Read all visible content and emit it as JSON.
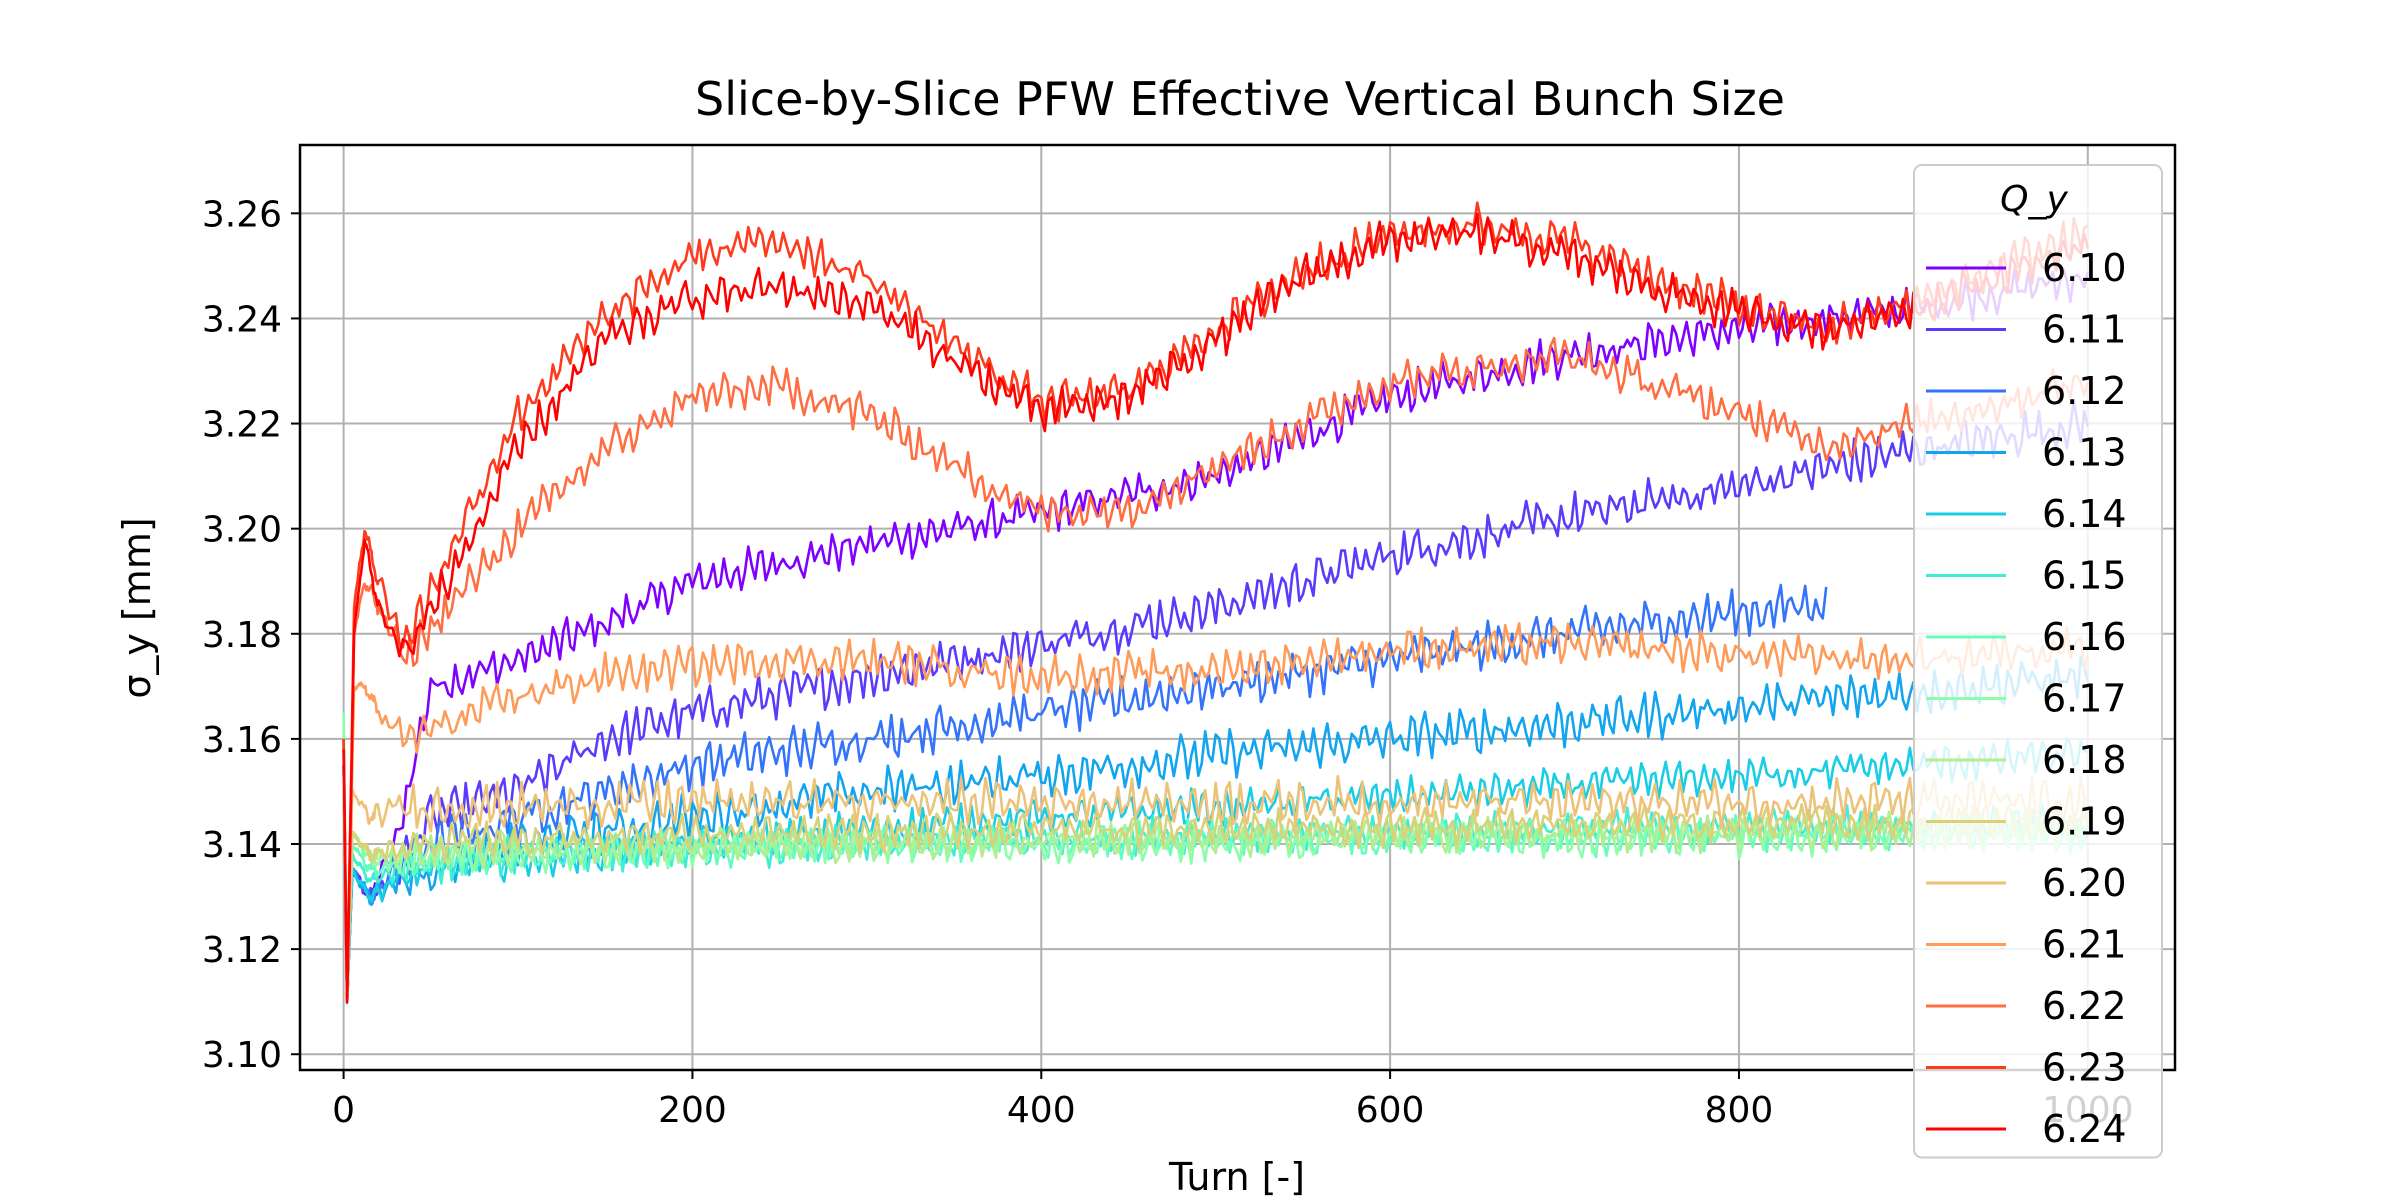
{
  "chart_data": {
    "type": "line",
    "title": "Slice-by-Slice PFW Effective Vertical Bunch Size",
    "xlabel": "Turn [-]",
    "ylabel": "σ_y [mm]",
    "xlim": [
      -25,
      1050
    ],
    "ylim": [
      3.097,
      3.273
    ],
    "xticks": [
      0,
      200,
      400,
      600,
      800,
      1000
    ],
    "xtick_labels": [
      "0",
      "200",
      "400",
      "600",
      "800",
      "1000"
    ],
    "yticks": [
      3.1,
      3.12,
      3.14,
      3.16,
      3.18,
      3.2,
      3.22,
      3.24,
      3.26
    ],
    "ytick_labels": [
      "3.10",
      "3.12",
      "3.14",
      "3.16",
      "3.18",
      "3.20",
      "3.22",
      "3.24",
      "3.26"
    ],
    "grid": true,
    "legend": {
      "title": "Q_y",
      "placement": "right (over plot)"
    },
    "series": [
      {
        "name": "6.10",
        "color": "#8000ff",
        "end": 1000,
        "noise": 0.0045,
        "x": [
          0,
          2,
          5,
          15,
          30,
          50,
          100,
          150,
          200,
          300,
          400,
          500,
          600,
          700,
          800,
          900,
          1000
        ],
        "y": [
          3.155,
          3.11,
          3.135,
          3.13,
          3.14,
          3.17,
          3.175,
          3.182,
          3.19,
          3.197,
          3.203,
          3.21,
          3.225,
          3.233,
          3.238,
          3.242,
          3.248
        ]
      },
      {
        "name": "6.11",
        "color": "#5a3bfc",
        "end": 1000,
        "noise": 0.005,
        "x": [
          0,
          2,
          5,
          15,
          30,
          50,
          100,
          150,
          200,
          300,
          400,
          500,
          600,
          700,
          800,
          900,
          1000
        ],
        "y": [
          3.155,
          3.11,
          3.135,
          3.13,
          3.135,
          3.145,
          3.15,
          3.16,
          3.165,
          3.172,
          3.178,
          3.185,
          3.195,
          3.202,
          3.208,
          3.215,
          3.22
        ]
      },
      {
        "name": "6.12",
        "color": "#3474fa",
        "end": 850,
        "noise": 0.005,
        "x": [
          0,
          2,
          5,
          15,
          30,
          50,
          100,
          150,
          200,
          300,
          400,
          500,
          600,
          700,
          800,
          850
        ],
        "y": [
          3.155,
          3.11,
          3.135,
          3.13,
          3.135,
          3.14,
          3.145,
          3.15,
          3.155,
          3.16,
          3.165,
          3.17,
          3.175,
          3.18,
          3.184,
          3.186
        ]
      },
      {
        "name": "6.13",
        "color": "#12a4ef",
        "end": 1000,
        "noise": 0.005,
        "x": [
          0,
          2,
          5,
          15,
          30,
          50,
          100,
          200,
          300,
          400,
          500,
          600,
          700,
          800,
          900,
          1000
        ],
        "y": [
          3.155,
          3.11,
          3.135,
          3.13,
          3.133,
          3.135,
          3.14,
          3.145,
          3.15,
          3.153,
          3.157,
          3.16,
          3.163,
          3.166,
          3.169,
          3.172
        ]
      },
      {
        "name": "6.14",
        "color": "#18cde4",
        "end": 1000,
        "noise": 0.004,
        "x": [
          0,
          2,
          5,
          15,
          30,
          50,
          100,
          200,
          300,
          400,
          500,
          600,
          700,
          800,
          900,
          1000
        ],
        "y": [
          3.155,
          3.11,
          3.135,
          3.13,
          3.133,
          3.135,
          3.137,
          3.14,
          3.143,
          3.145,
          3.147,
          3.149,
          3.151,
          3.153,
          3.155,
          3.157
        ]
      },
      {
        "name": "6.15",
        "color": "#40ecd4",
        "end": 1000,
        "noise": 0.004,
        "x": [
          0,
          2,
          5,
          15,
          30,
          50,
          100,
          200,
          300,
          400,
          500,
          600,
          700,
          800,
          900,
          1000
        ],
        "y": [
          3.158,
          3.11,
          3.138,
          3.133,
          3.135,
          3.136,
          3.138,
          3.139,
          3.14,
          3.141,
          3.142,
          3.142,
          3.143,
          3.143,
          3.144,
          3.144
        ]
      },
      {
        "name": "6.16",
        "color": "#66fcbf",
        "end": 1000,
        "noise": 0.004,
        "x": [
          0,
          2,
          5,
          15,
          30,
          50,
          100,
          200,
          300,
          400,
          500,
          600,
          700,
          800,
          900,
          1000
        ],
        "y": [
          3.16,
          3.11,
          3.14,
          3.135,
          3.136,
          3.137,
          3.138,
          3.139,
          3.14,
          3.14,
          3.141,
          3.141,
          3.141,
          3.142,
          3.142,
          3.142
        ]
      },
      {
        "name": "6.17",
        "color": "#8cfda9",
        "end": 1000,
        "noise": 0.004,
        "x": [
          0,
          2,
          5,
          15,
          30,
          50,
          100,
          200,
          300,
          400,
          500,
          600,
          700,
          800,
          900,
          1000
        ],
        "y": [
          3.165,
          3.11,
          3.142,
          3.137,
          3.137,
          3.138,
          3.138,
          3.139,
          3.14,
          3.14,
          3.14,
          3.141,
          3.141,
          3.141,
          3.142,
          3.142
        ]
      },
      {
        "name": "6.18",
        "color": "#b2ed91",
        "end": 1000,
        "noise": 0.004,
        "x": [
          0,
          2,
          5,
          15,
          30,
          50,
          100,
          200,
          300,
          400,
          500,
          600,
          700,
          800,
          900,
          1000
        ],
        "y": [
          3.16,
          3.11,
          3.142,
          3.138,
          3.138,
          3.139,
          3.139,
          3.14,
          3.14,
          3.141,
          3.141,
          3.142,
          3.142,
          3.142,
          3.143,
          3.143
        ]
      },
      {
        "name": "6.19",
        "color": "#d9d177",
        "end": 1000,
        "noise": 0.004,
        "x": [
          0,
          2,
          5,
          15,
          30,
          50,
          100,
          200,
          300,
          400,
          500,
          600,
          700,
          800,
          900,
          1000
        ],
        "y": [
          3.155,
          3.11,
          3.142,
          3.138,
          3.139,
          3.14,
          3.141,
          3.142,
          3.142,
          3.143,
          3.143,
          3.143,
          3.144,
          3.144,
          3.144,
          3.145
        ]
      },
      {
        "name": "6.20",
        "color": "#ecc278",
        "end": 1000,
        "noise": 0.005,
        "x": [
          0,
          2,
          5,
          15,
          30,
          50,
          100,
          200,
          300,
          400,
          500,
          600,
          700,
          800,
          900,
          1000
        ],
        "y": [
          3.16,
          3.11,
          3.15,
          3.145,
          3.147,
          3.147,
          3.147,
          3.148,
          3.148,
          3.148,
          3.148,
          3.148,
          3.148,
          3.148,
          3.148,
          3.148
        ]
      },
      {
        "name": "6.21",
        "color": "#ff9b58",
        "end": 1000,
        "noise": 0.0045,
        "x": [
          0,
          2,
          6,
          12,
          20,
          35,
          60,
          100,
          150,
          200,
          250,
          300,
          400,
          500,
          600,
          700,
          800,
          900,
          1000
        ],
        "y": [
          3.16,
          3.11,
          3.17,
          3.17,
          3.165,
          3.16,
          3.163,
          3.168,
          3.172,
          3.174,
          3.175,
          3.175,
          3.172,
          3.173,
          3.177,
          3.178,
          3.176,
          3.175,
          3.178
        ]
      },
      {
        "name": "6.22",
        "color": "#ff6e42",
        "end": 1000,
        "noise": 0.0045,
        "x": [
          0,
          2,
          6,
          12,
          20,
          35,
          60,
          100,
          150,
          200,
          250,
          300,
          350,
          400,
          450,
          500,
          600,
          700,
          800,
          850,
          900,
          1000
        ],
        "y": [
          3.16,
          3.11,
          3.18,
          3.19,
          3.185,
          3.175,
          3.185,
          3.2,
          3.215,
          3.225,
          3.227,
          3.222,
          3.212,
          3.203,
          3.204,
          3.212,
          3.228,
          3.233,
          3.222,
          3.216,
          3.22,
          3.228
        ]
      },
      {
        "name": "6.23",
        "color": "#ff3b1e",
        "end": 1000,
        "noise": 0.0045,
        "x": [
          0,
          2,
          6,
          12,
          20,
          35,
          60,
          100,
          150,
          200,
          250,
          300,
          350,
          400,
          450,
          500,
          550,
          600,
          650,
          700,
          750,
          800,
          850,
          900,
          950,
          1000
        ],
        "y": [
          3.16,
          3.11,
          3.185,
          3.2,
          3.19,
          3.178,
          3.195,
          3.222,
          3.24,
          3.252,
          3.255,
          3.248,
          3.235,
          3.224,
          3.226,
          3.238,
          3.249,
          3.256,
          3.258,
          3.255,
          3.248,
          3.242,
          3.238,
          3.243,
          3.25,
          3.256
        ]
      },
      {
        "name": "6.24",
        "color": "#ff0000",
        "end": 1000,
        "noise": 0.0045,
        "x": [
          0,
          2,
          6,
          12,
          20,
          35,
          60,
          100,
          150,
          200,
          250,
          300,
          350,
          400,
          450,
          500,
          550,
          600,
          650,
          700,
          750,
          800,
          850,
          900,
          950,
          1000
        ],
        "y": [
          3.158,
          3.11,
          3.18,
          3.198,
          3.185,
          3.176,
          3.19,
          3.215,
          3.236,
          3.244,
          3.246,
          3.243,
          3.232,
          3.222,
          3.225,
          3.236,
          3.248,
          3.255,
          3.256,
          3.252,
          3.246,
          3.241,
          3.238,
          3.242,
          3.248,
          3.254
        ]
      }
    ]
  }
}
